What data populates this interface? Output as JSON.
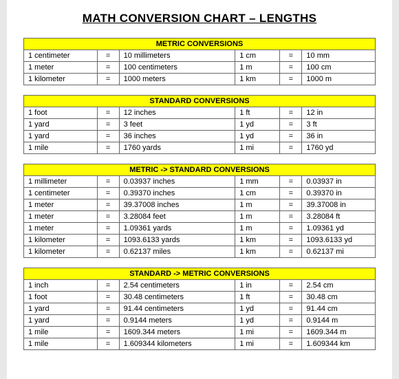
{
  "title": "MATH CONVERSION CHART – LENGTHS",
  "header_bg": "#ffff00",
  "sections": [
    {
      "heading": "METRIC CONVERSIONS",
      "rows": [
        [
          "1 centimeter",
          "=",
          "10 millimeters",
          "1 cm",
          "=",
          "10 mm"
        ],
        [
          "1 meter",
          "=",
          "100 centimeters",
          "1 m",
          "=",
          "100 cm"
        ],
        [
          "1 kilometer",
          "=",
          "1000 meters",
          "1 km",
          "=",
          "1000 m"
        ]
      ]
    },
    {
      "heading": "STANDARD CONVERSIONS",
      "rows": [
        [
          "1 foot",
          "=",
          "12 inches",
          "1 ft",
          "=",
          "12 in"
        ],
        [
          "1 yard",
          "=",
          "3 feet",
          "1 yd",
          "=",
          "3 ft"
        ],
        [
          "1 yard",
          "=",
          "36 inches",
          "1 yd",
          "=",
          "36 in"
        ],
        [
          "1 mile",
          "=",
          "1760 yards",
          "1 mi",
          "=",
          "1760 yd"
        ]
      ]
    },
    {
      "heading": "METRIC -> STANDARD CONVERSIONS",
      "rows": [
        [
          "1 millimeter",
          "=",
          "0.03937 inches",
          "1 mm",
          "=",
          "0.03937 in"
        ],
        [
          "1 centimeter",
          "=",
          "0.39370 inches",
          "1 cm",
          "=",
          "0.39370 in"
        ],
        [
          "1 meter",
          "=",
          "39.37008 inches",
          "1 m",
          "=",
          "39.37008 in"
        ],
        [
          "1 meter",
          "=",
          "3.28084 feet",
          "1 m",
          "=",
          "3.28084 ft"
        ],
        [
          "1 meter",
          "=",
          "1.09361 yards",
          "1 m",
          "=",
          "1.09361 yd"
        ],
        [
          "1 kilometer",
          "=",
          "1093.6133 yards",
          "1 km",
          "=",
          "1093.6133 yd"
        ],
        [
          "1 kilometer",
          "=",
          "0.62137 miles",
          "1 km",
          "=",
          "0.62137 mi"
        ]
      ]
    },
    {
      "heading": "STANDARD -> METRIC CONVERSIONS",
      "rows": [
        [
          "1 inch",
          "=",
          "2.54 centimeters",
          "1 in",
          "=",
          "2.54 cm"
        ],
        [
          "1 foot",
          "=",
          "30.48 centimeters",
          "1 ft",
          "=",
          "30.48 cm"
        ],
        [
          "1 yard",
          "=",
          "91.44 centimeters",
          "1 yd",
          "=",
          "91.44 cm"
        ],
        [
          "1 yard",
          "=",
          "0.9144 meters",
          "1 yd",
          "=",
          "0.9144 m"
        ],
        [
          "1 mile",
          "=",
          "1609.344 meters",
          "1 mi",
          "=",
          "1609.344 m"
        ],
        [
          "1 mile",
          "=",
          "1.609344 kilometers",
          "1 mi",
          "=",
          "1.609344 km"
        ]
      ]
    }
  ]
}
